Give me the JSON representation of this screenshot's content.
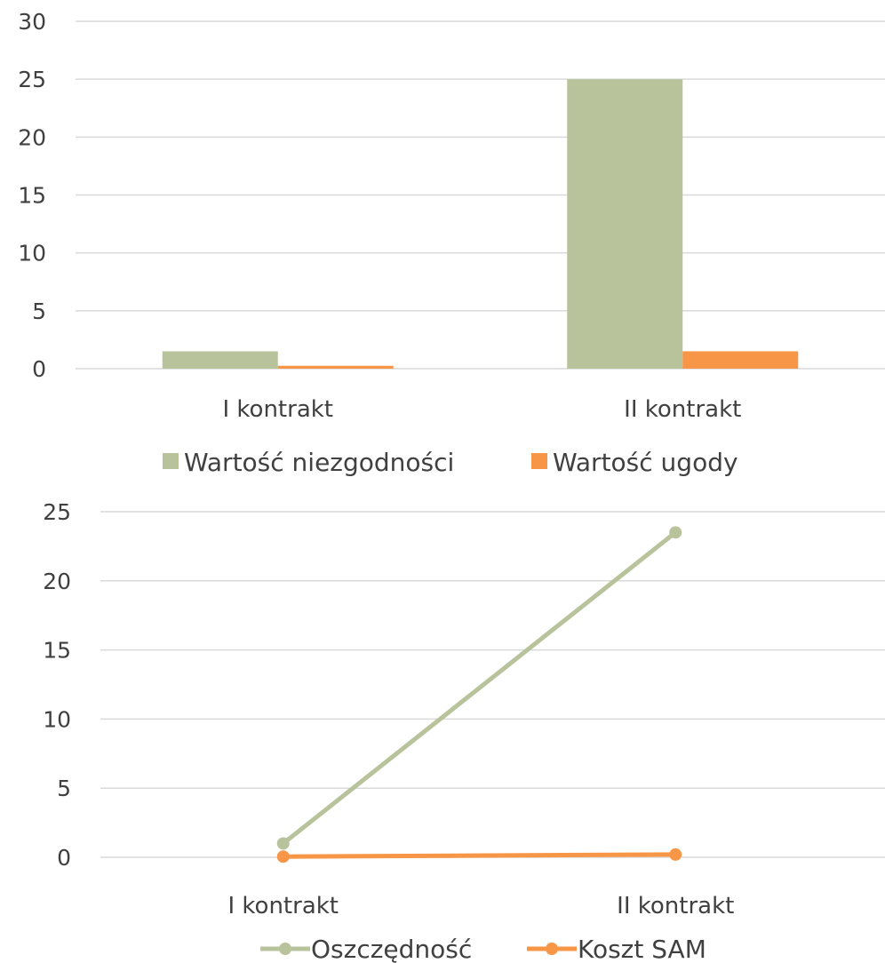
{
  "chart_data": [
    {
      "type": "bar",
      "categories": [
        "I kontrakt",
        "II kontrakt"
      ],
      "series": [
        {
          "name": "Wartość niezgodności",
          "values": [
            1.5,
            25
          ],
          "color": "#B8C39C"
        },
        {
          "name": "Wartość ugody",
          "values": [
            0.25,
            1.5
          ],
          "color": "#F79646"
        }
      ],
      "ylim": [
        0,
        30
      ],
      "yticks": [
        "0",
        "5",
        "10",
        "15",
        "20",
        "25",
        "30"
      ],
      "grid": true,
      "legend": "bottom"
    },
    {
      "type": "line",
      "categories": [
        "I kontrakt",
        "II kontrakt"
      ],
      "series": [
        {
          "name": "Oszczędność",
          "values": [
            1,
            23.5
          ],
          "color": "#B8C39C"
        },
        {
          "name": "Koszt SAM",
          "values": [
            0.05,
            0.2
          ],
          "color": "#F79646"
        }
      ],
      "ylim": [
        0,
        25
      ],
      "yticks": [
        "0",
        "5",
        "10",
        "15",
        "20",
        "25"
      ],
      "grid": true,
      "legend": "bottom"
    }
  ]
}
